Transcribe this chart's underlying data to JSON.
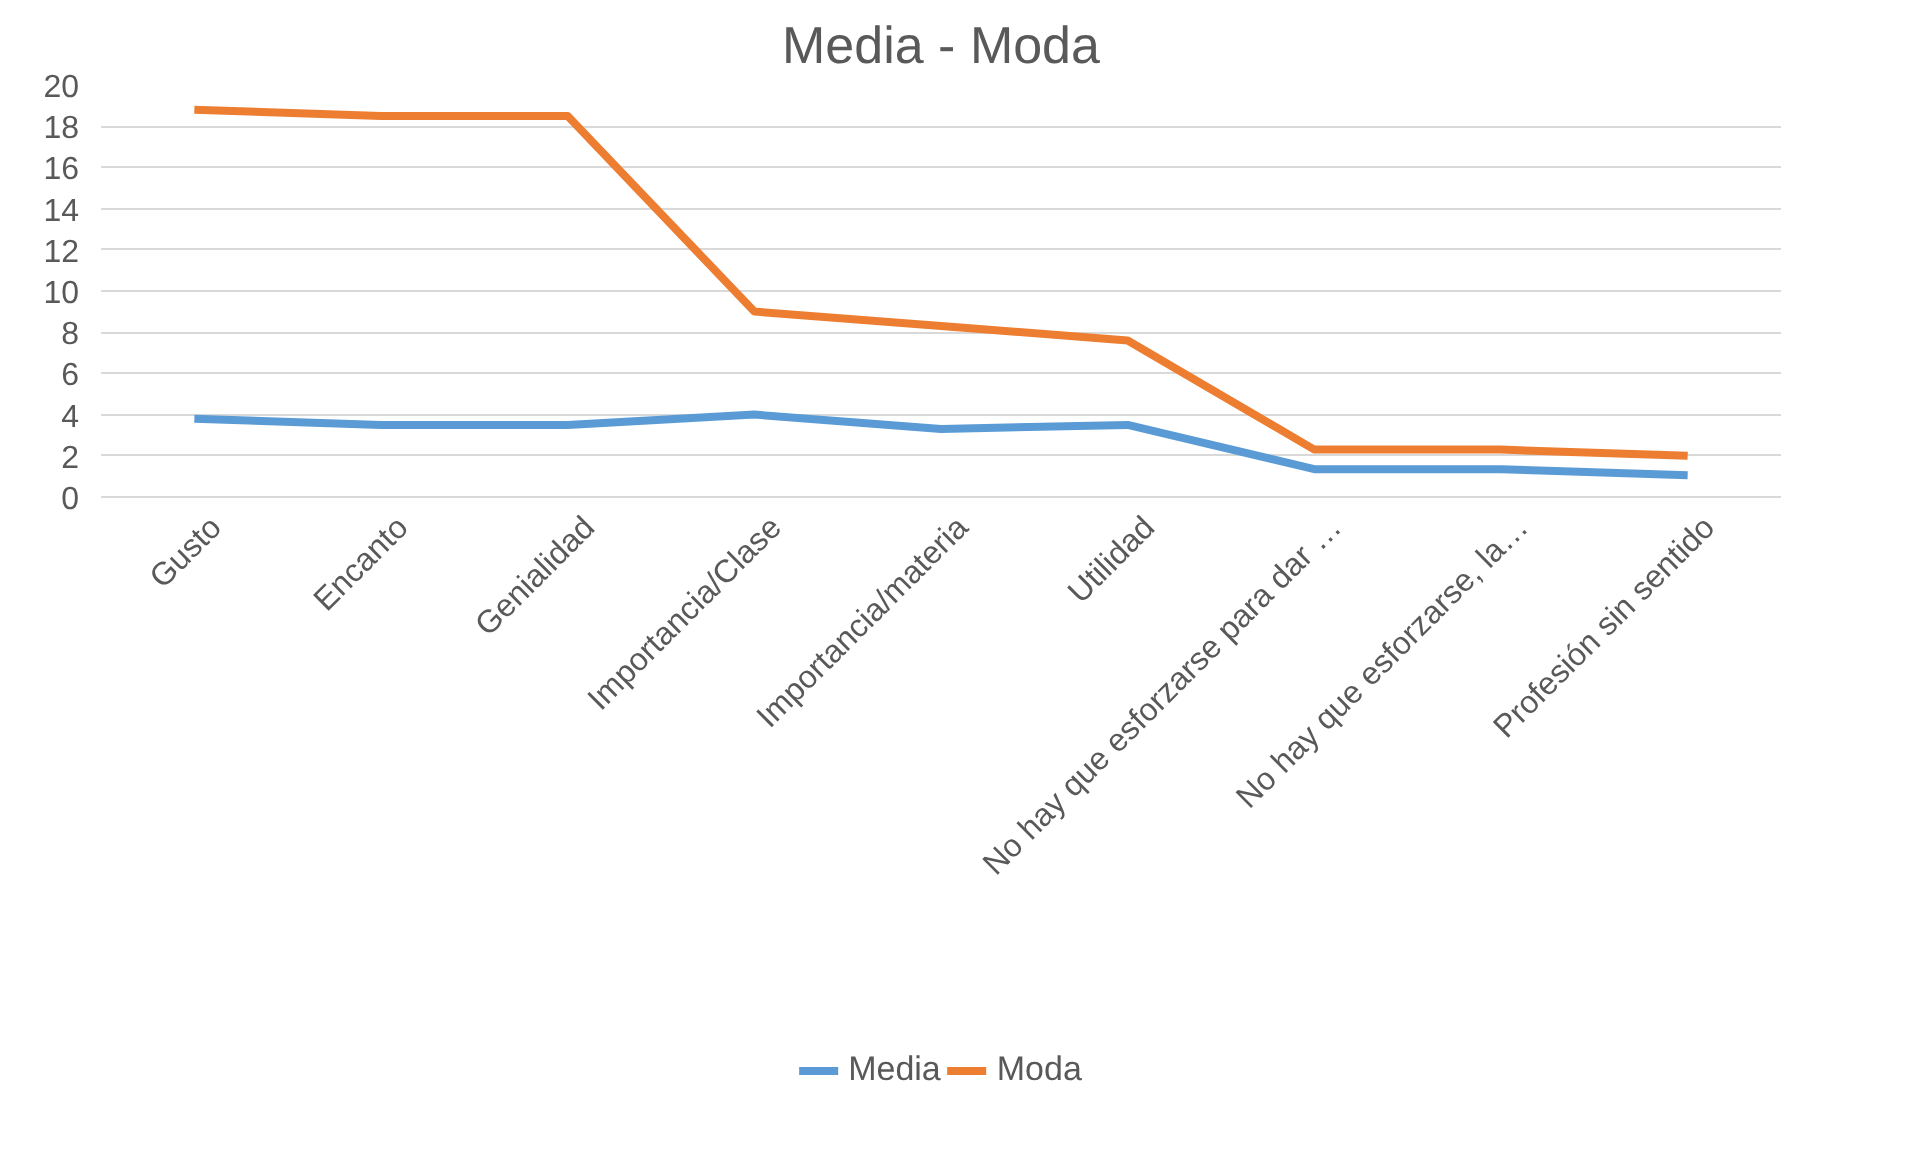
{
  "chart_data": {
    "type": "line",
    "title": "Media - Moda",
    "categories": [
      "Gusto",
      "Encanto",
      "Genialidad",
      "Importancia/Clase",
      "Importancia/materia",
      "Utilidad",
      "No hay que esforzarse para dar …",
      "No hay que esforzarse, la…",
      "Profesión sin sentido"
    ],
    "series": [
      {
        "name": "Media",
        "color": "#5b9bd5",
        "values": [
          3.8,
          3.5,
          3.5,
          4.0,
          3.3,
          3.5,
          1.35,
          1.35,
          1.05
        ]
      },
      {
        "name": "Moda",
        "color": "#ed7d31",
        "values": [
          18.8,
          18.5,
          18.5,
          9.0,
          8.3,
          7.6,
          2.3,
          2.3,
          2.0
        ]
      }
    ],
    "ylim": [
      0,
      20
    ],
    "yticks": [
      0,
      2,
      4,
      6,
      8,
      10,
      12,
      14,
      16,
      18,
      20
    ],
    "grid": "y",
    "legend": "bottom",
    "marker": "none",
    "line_style": "solid"
  }
}
